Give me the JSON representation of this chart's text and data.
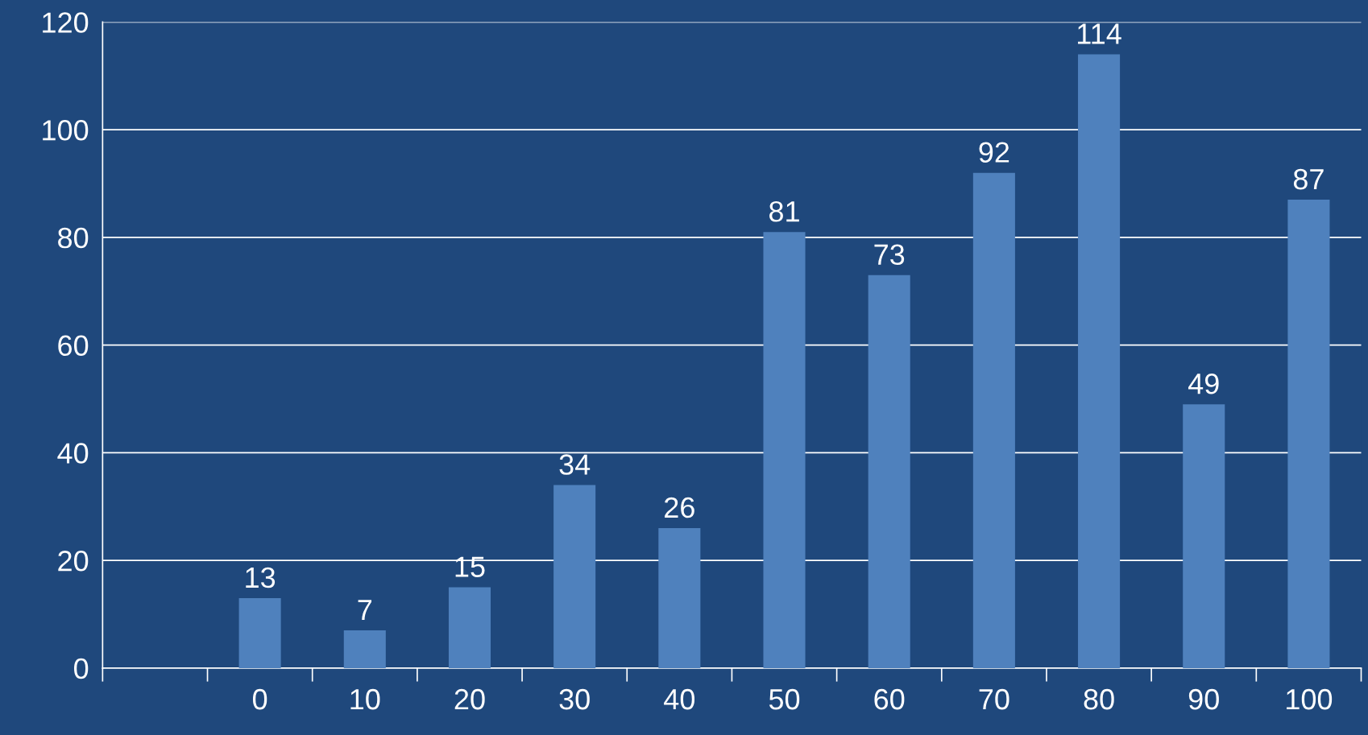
{
  "chart_data": {
    "type": "bar",
    "categories": [
      null,
      "0",
      "10",
      "20",
      "30",
      "40",
      "50",
      "60",
      "70",
      "80",
      "90",
      "100"
    ],
    "values": [
      null,
      13,
      7,
      15,
      34,
      26,
      81,
      73,
      92,
      114,
      49,
      87
    ],
    "color": "#4f81bd",
    "ylim": [
      0,
      120
    ],
    "yticks": [
      0,
      20,
      40,
      60,
      80,
      100,
      120
    ],
    "grid": "y",
    "data_labels": true,
    "legend": false
  }
}
